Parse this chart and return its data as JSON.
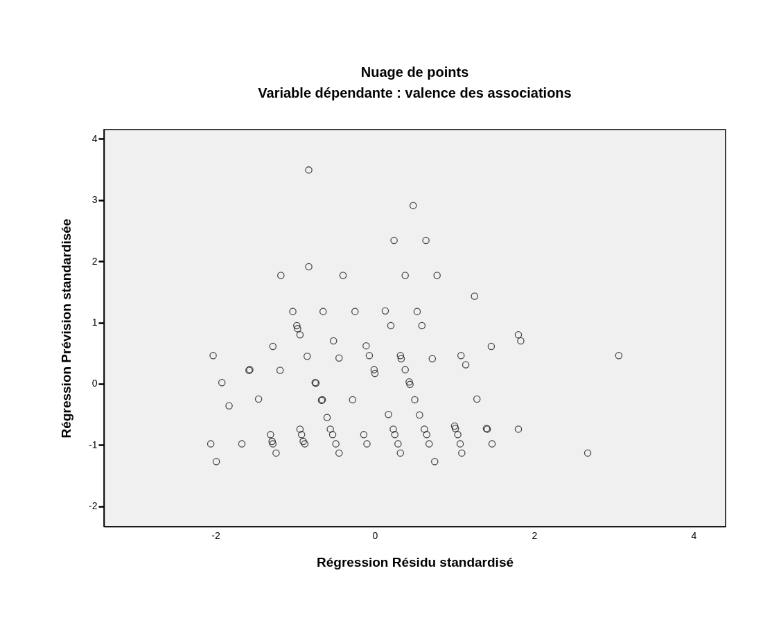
{
  "chart_data": {
    "type": "scatter",
    "title": "Nuage de points",
    "subtitle": "Variable dépendante : valence des associations",
    "xlabel": "Régression Résidu standardisé",
    "ylabel": "Régression Prévision standardisée",
    "xlim": [
      -3.4,
      4.4
    ],
    "ylim": [
      -2.33,
      4.15
    ],
    "xticks": [
      -2,
      0,
      2,
      4
    ],
    "yticks": [
      -2,
      -1,
      0,
      1,
      2,
      3,
      4
    ],
    "grid": false,
    "marker": "circle",
    "series": [
      {
        "color": "#000000",
        "x": [
          -0.83,
          0.48,
          0.24,
          0.64,
          -1.18,
          -0.83,
          -0.4,
          0.38,
          0.78,
          -1.03,
          -0.65,
          -0.25,
          0.13,
          0.53,
          -0.98,
          -0.97,
          -0.94,
          0.2,
          0.59,
          -0.52,
          -1.28,
          -0.11,
          -2.03,
          -0.85,
          -0.45,
          -0.07,
          0.32,
          0.33,
          0.72,
          1.08,
          -1.58,
          -1.57,
          -1.19,
          -0.01,
          0.0,
          0.38,
          -1.92,
          -0.75,
          -0.74,
          0.43,
          0.44,
          -1.46,
          -1.83,
          -0.67,
          -0.66,
          -0.28,
          0.5,
          -0.6,
          0.17,
          0.56,
          -0.94,
          -0.92,
          -0.9,
          -0.88,
          -1.31,
          -1.29,
          -1.28,
          -1.24,
          -2.06,
          -1.99,
          -1.67,
          -0.56,
          -0.53,
          -0.49,
          -0.45,
          -0.14,
          -0.1,
          0.23,
          0.25,
          0.29,
          0.32,
          0.62,
          0.65,
          0.68,
          0.75,
          1.0,
          1.01,
          1.04,
          1.07,
          1.09,
          1.25,
          1.8,
          1.83,
          1.46,
          1.14,
          3.06,
          1.28,
          1.4,
          1.41,
          1.8,
          1.47,
          2.67
        ],
        "values": [
          3.49,
          2.91,
          2.34,
          2.34,
          1.77,
          1.91,
          1.77,
          1.77,
          1.77,
          1.18,
          1.18,
          1.18,
          1.19,
          1.18,
          0.95,
          0.9,
          0.8,
          0.95,
          0.95,
          0.7,
          0.61,
          0.62,
          0.46,
          0.45,
          0.42,
          0.46,
          0.46,
          0.41,
          0.41,
          0.46,
          0.22,
          0.23,
          0.22,
          0.23,
          0.17,
          0.23,
          0.02,
          0.02,
          0.01,
          0.03,
          -0.01,
          -0.25,
          -0.36,
          -0.27,
          -0.26,
          -0.26,
          -0.26,
          -0.55,
          -0.5,
          -0.51,
          -0.74,
          -0.83,
          -0.94,
          -0.98,
          -0.83,
          -0.94,
          -0.98,
          -1.13,
          -0.98,
          -1.27,
          -0.98,
          -0.74,
          -0.83,
          -0.98,
          -1.13,
          -0.83,
          -0.98,
          -0.74,
          -0.83,
          -0.98,
          -1.13,
          -0.74,
          -0.83,
          -0.98,
          -1.27,
          -0.69,
          -0.73,
          -0.83,
          -0.98,
          -1.13,
          1.43,
          0.8,
          0.7,
          0.61,
          0.31,
          0.46,
          -0.25,
          -0.73,
          -0.74,
          -0.74,
          -0.98,
          -1.13
        ]
      }
    ]
  }
}
